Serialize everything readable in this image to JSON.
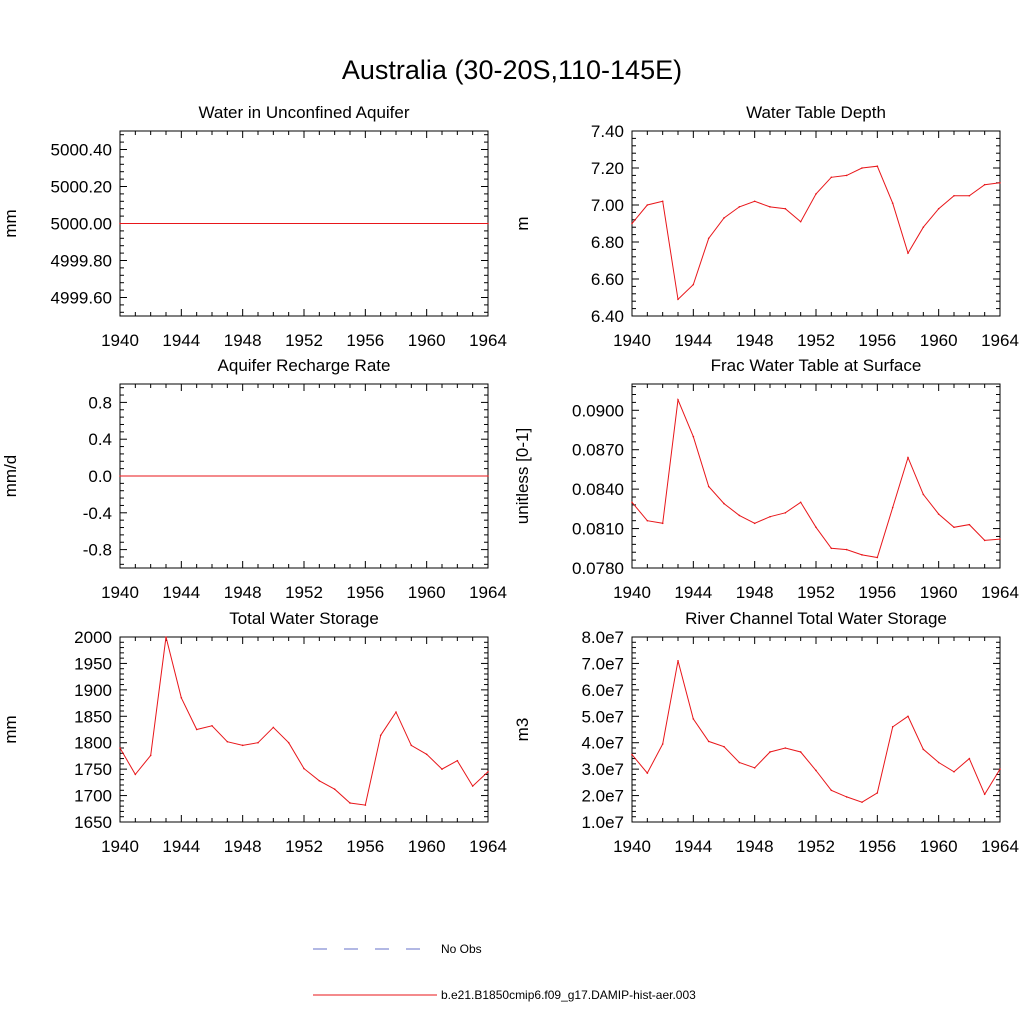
{
  "title": "Australia (30-20S,110-145E)",
  "legend": {
    "items": [
      {
        "label": "No Obs",
        "style": "dashed",
        "color": "#6670c8"
      },
      {
        "label": "b.e21.B1850cmip6.f09_g17.DAMIP-hist-aer.003",
        "style": "solid",
        "color": "#e8161a"
      }
    ]
  },
  "chart_data": [
    {
      "type": "line",
      "title": "Water in Unconfined Aquifer",
      "ylabel": "mm",
      "xlim": [
        1940,
        1964
      ],
      "ylim": [
        4999.5,
        5000.5
      ],
      "xticks": [
        1940,
        1944,
        1948,
        1952,
        1956,
        1960,
        1964
      ],
      "yticks": [
        4999.6,
        4999.8,
        5000.0,
        5000.2,
        5000.4
      ],
      "ytick_labels": [
        "4999.60",
        "4999.80",
        "5000.00",
        "5000.20",
        "5000.40"
      ],
      "series": [
        {
          "name": "b.e21.B1850cmip6.f09_g17.DAMIP-hist-aer.003",
          "color": "#e8161a",
          "x": [
            1940,
            1964
          ],
          "y": [
            5000.0,
            5000.0
          ]
        }
      ]
    },
    {
      "type": "line",
      "title": "Water Table Depth",
      "ylabel": "m",
      "xlim": [
        1940,
        1964
      ],
      "ylim": [
        6.4,
        7.4
      ],
      "xticks": [
        1940,
        1944,
        1948,
        1952,
        1956,
        1960,
        1964
      ],
      "yticks": [
        6.4,
        6.6,
        6.8,
        7.0,
        7.2,
        7.4
      ],
      "ytick_labels": [
        "6.40",
        "6.60",
        "6.80",
        "7.00",
        "7.20",
        "7.40"
      ],
      "series": [
        {
          "name": "b.e21.B1850cmip6.f09_g17.DAMIP-hist-aer.003",
          "color": "#e8161a",
          "x": [
            1940,
            1941,
            1942,
            1943,
            1944,
            1945,
            1946,
            1947,
            1948,
            1949,
            1950,
            1951,
            1952,
            1953,
            1954,
            1955,
            1956,
            1957,
            1958,
            1959,
            1960,
            1961,
            1962,
            1963,
            1964
          ],
          "y": [
            6.9,
            7.0,
            7.02,
            6.49,
            6.57,
            6.82,
            6.93,
            6.99,
            7.02,
            6.99,
            6.98,
            6.91,
            7.06,
            7.15,
            7.16,
            7.2,
            7.21,
            7.01,
            6.74,
            6.88,
            6.98,
            7.05,
            7.05,
            7.11,
            7.12
          ]
        }
      ]
    },
    {
      "type": "line",
      "title": "Aquifer Recharge Rate",
      "ylabel": "mm/d",
      "xlim": [
        1940,
        1964
      ],
      "ylim": [
        -1.0,
        1.0
      ],
      "xticks": [
        1940,
        1944,
        1948,
        1952,
        1956,
        1960,
        1964
      ],
      "yticks": [
        -0.8,
        -0.4,
        0.0,
        0.4,
        0.8
      ],
      "ytick_labels": [
        "-0.8",
        "-0.4",
        "0.0",
        "0.4",
        "0.8"
      ],
      "series": [
        {
          "name": "b.e21.B1850cmip6.f09_g17.DAMIP-hist-aer.003",
          "color": "#e8161a",
          "x": [
            1940,
            1964
          ],
          "y": [
            0.0,
            0.0
          ]
        }
      ]
    },
    {
      "type": "line",
      "title": "Frac Water Table at Surface",
      "ylabel": "unitless [0-1]",
      "xlim": [
        1940,
        1964
      ],
      "ylim": [
        0.078,
        0.092
      ],
      "xticks": [
        1940,
        1944,
        1948,
        1952,
        1956,
        1960,
        1964
      ],
      "yticks": [
        0.078,
        0.081,
        0.084,
        0.087,
        0.09
      ],
      "ytick_labels": [
        "0.0780",
        "0.0810",
        "0.0840",
        "0.0870",
        "0.0900"
      ],
      "series": [
        {
          "name": "b.e21.B1850cmip6.f09_g17.DAMIP-hist-aer.003",
          "color": "#e8161a",
          "x": [
            1940,
            1941,
            1942,
            1943,
            1944,
            1945,
            1946,
            1947,
            1948,
            1949,
            1950,
            1951,
            1952,
            1953,
            1954,
            1955,
            1956,
            1957,
            1958,
            1959,
            1960,
            1961,
            1962,
            1963,
            1964
          ],
          "y": [
            0.083,
            0.0816,
            0.0814,
            0.0908,
            0.088,
            0.0842,
            0.0829,
            0.082,
            0.0814,
            0.0819,
            0.0822,
            0.083,
            0.0811,
            0.0795,
            0.0794,
            0.079,
            0.0788,
            0.0826,
            0.0864,
            0.0836,
            0.0821,
            0.0811,
            0.0813,
            0.0801,
            0.0802
          ]
        }
      ]
    },
    {
      "type": "line",
      "title": "Total Water Storage",
      "ylabel": "mm",
      "xlim": [
        1940,
        1964
      ],
      "ylim": [
        1650,
        2000
      ],
      "xticks": [
        1940,
        1944,
        1948,
        1952,
        1956,
        1960,
        1964
      ],
      "yticks": [
        1650,
        1700,
        1750,
        1800,
        1850,
        1900,
        1950,
        2000
      ],
      "ytick_labels": [
        "1650",
        "1700",
        "1750",
        "1800",
        "1850",
        "1900",
        "1950",
        "2000"
      ],
      "series": [
        {
          "name": "b.e21.B1850cmip6.f09_g17.DAMIP-hist-aer.003",
          "color": "#e8161a",
          "x": [
            1940,
            1941,
            1942,
            1943,
            1944,
            1945,
            1946,
            1947,
            1948,
            1949,
            1950,
            1951,
            1952,
            1953,
            1954,
            1955,
            1956,
            1957,
            1958,
            1959,
            1960,
            1961,
            1962,
            1963,
            1964
          ],
          "y": [
            1790,
            1740,
            1776,
            2000,
            1885,
            1825,
            1832,
            1802,
            1795,
            1800,
            1829,
            1800,
            1751,
            1728,
            1712,
            1686,
            1682,
            1814,
            1858,
            1795,
            1778,
            1750,
            1766,
            1718,
            1745
          ]
        }
      ]
    },
    {
      "type": "line",
      "title": "River Channel Total Water Storage",
      "ylabel": "m3",
      "xlim": [
        1940,
        1964
      ],
      "ylim": [
        10000000,
        80000000
      ],
      "xticks": [
        1940,
        1944,
        1948,
        1952,
        1956,
        1960,
        1964
      ],
      "yticks": [
        10000000,
        20000000,
        30000000,
        40000000,
        50000000,
        60000000,
        70000000,
        80000000
      ],
      "ytick_labels": [
        "1.0e7",
        "2.0e7",
        "3.0e7",
        "4.0e7",
        "5.0e7",
        "6.0e7",
        "7.0e7",
        "8.0e7"
      ],
      "series": [
        {
          "name": "b.e21.B1850cmip6.f09_g17.DAMIP-hist-aer.003",
          "color": "#e8161a",
          "x": [
            1940,
            1941,
            1942,
            1943,
            1944,
            1945,
            1946,
            1947,
            1948,
            1949,
            1950,
            1951,
            1952,
            1953,
            1954,
            1955,
            1956,
            1957,
            1958,
            1959,
            1960,
            1961,
            1962,
            1963,
            1964
          ],
          "y": [
            35500000,
            28500000,
            39500000,
            71000000,
            49000000,
            40500000,
            38500000,
            32500000,
            30500000,
            36500000,
            38000000,
            36500000,
            29500000,
            22000000,
            19500000,
            17500000,
            21000000,
            46000000,
            50000000,
            37500000,
            32500000,
            29000000,
            34000000,
            20500000,
            30000000
          ]
        }
      ]
    }
  ]
}
